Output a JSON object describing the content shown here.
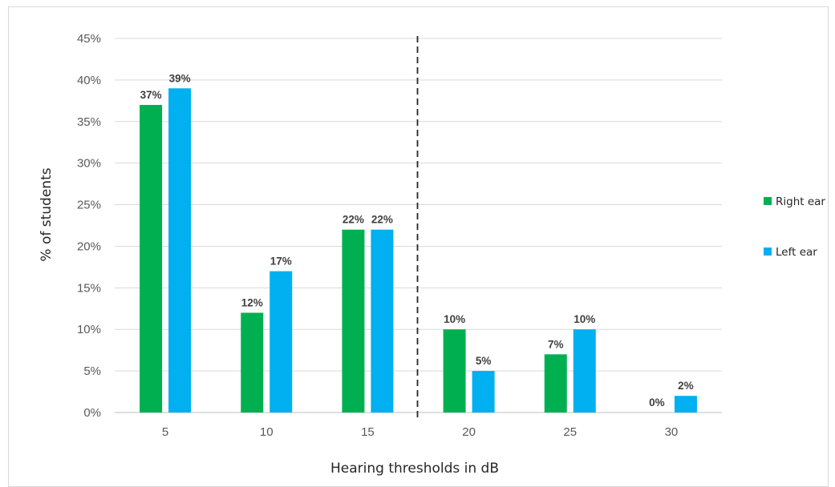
{
  "chart_data": {
    "type": "bar",
    "categories": [
      "5",
      "10",
      "15",
      "20",
      "25",
      "30"
    ],
    "series": [
      {
        "name": "Right ear",
        "color": "#00b050",
        "values": [
          37,
          12,
          22,
          10,
          7,
          0
        ],
        "labels": [
          "37%",
          "12%",
          "22%",
          "10%",
          "7%",
          "0%"
        ]
      },
      {
        "name": "Left ear",
        "color": "#00b0f0",
        "values": [
          39,
          17,
          22,
          5,
          10,
          2
        ],
        "labels": [
          "39%",
          "17%",
          "22%",
          "5%",
          "10%",
          "2%"
        ]
      }
    ],
    "xlabel": "Hearing thresholds in dB",
    "ylabel": "% of students",
    "ylim": [
      0,
      45
    ],
    "yticks": [
      "0%",
      "5%",
      "10%",
      "15%",
      "20%",
      "25%",
      "30%",
      "35%",
      "40%",
      "45%"
    ],
    "ytick_values": [
      0,
      5,
      10,
      15,
      20,
      25,
      30,
      35,
      40,
      45
    ],
    "grid": true,
    "legend_position": "right",
    "reference_line": {
      "style": "dashed",
      "between_categories": [
        "15",
        "20"
      ]
    }
  }
}
